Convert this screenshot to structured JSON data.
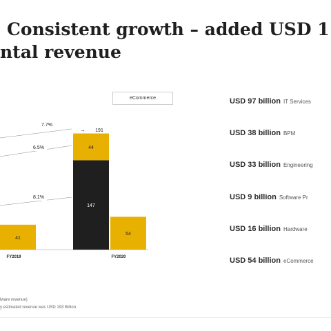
{
  "slide": {
    "title_line1": "Consistent growth – added USD 1",
    "title_line2": "ntal revenue",
    "footnotes": [
      "lware revenue)",
      "y estimated revenue was USD 193 Billion"
    ]
  },
  "chart_data": {
    "type": "bar",
    "categories": [
      "FY2019",
      "FY2020"
    ],
    "series": [
      {
        "name": "",
        "color": "#1f1f1f",
        "values": [
          null,
          147
        ]
      },
      {
        "name": "",
        "color": "#e8b000",
        "values": [
          null,
          44
        ]
      },
      {
        "name": "eCommerce",
        "color": "#e8b000",
        "values": [
          41,
          54
        ]
      }
    ],
    "totals": {
      "FY2020": 191
    },
    "cagr_labels": [
      "7.7%",
      "6.5%",
      "8.1%"
    ],
    "legend": [
      "eCommerce"
    ]
  },
  "segments": [
    {
      "value": "USD 97 billion",
      "label": "IT Services"
    },
    {
      "value": "USD 38 billion",
      "label": "BPM"
    },
    {
      "value": "USD 33 billion",
      "label": "Engineering"
    },
    {
      "value": "USD 9 billion",
      "label": "Software Pr"
    },
    {
      "value": "USD 16 billion",
      "label": "Hardware"
    },
    {
      "value": "USD 54 billion",
      "label": "eCommerce"
    }
  ]
}
